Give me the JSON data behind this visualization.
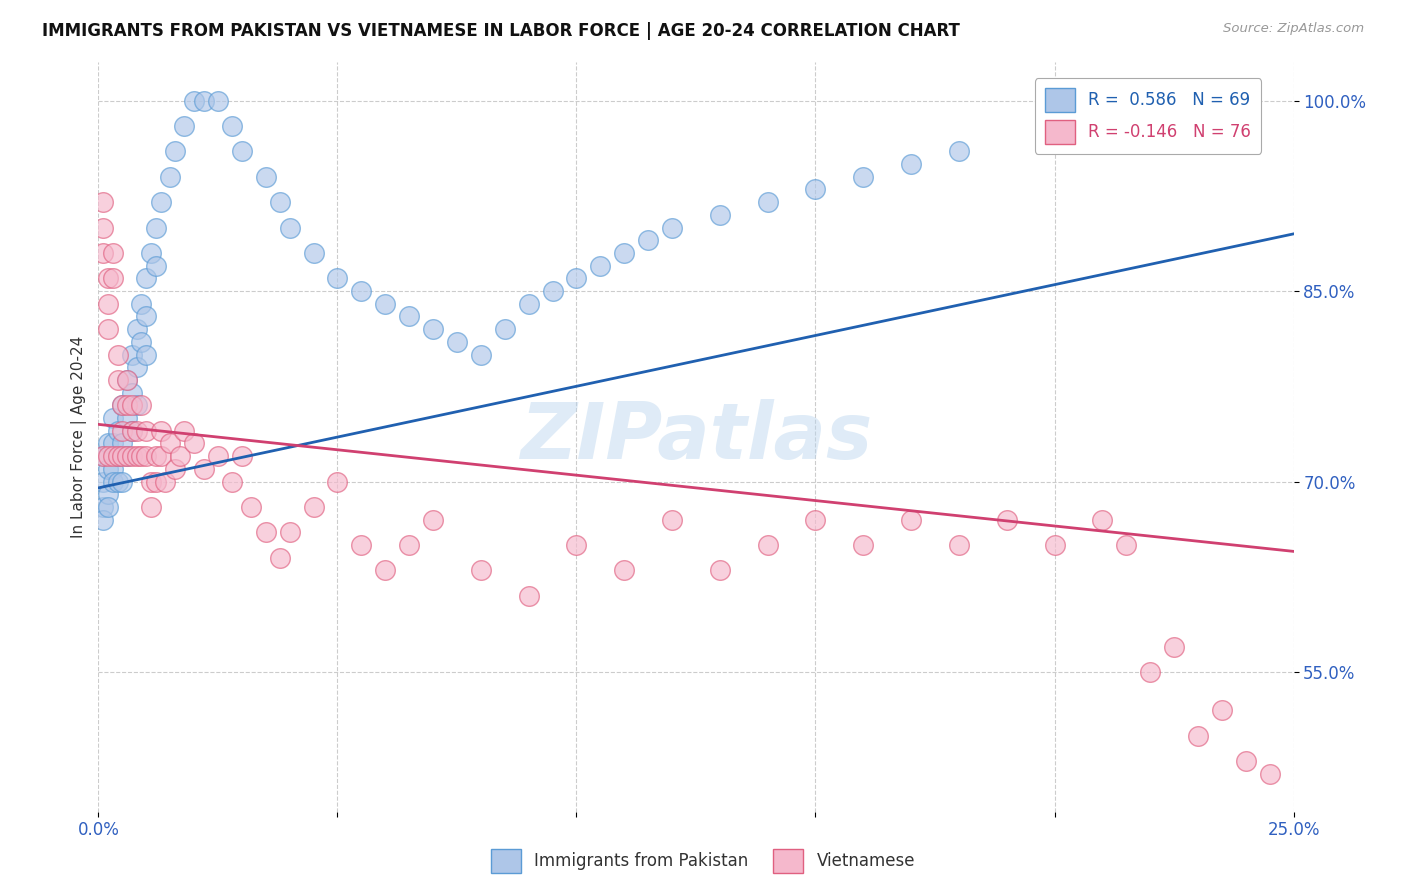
{
  "title": "IMMIGRANTS FROM PAKISTAN VS VIETNAMESE IN LABOR FORCE | AGE 20-24 CORRELATION CHART",
  "source": "Source: ZipAtlas.com",
  "ylabel": "In Labor Force | Age 20-24",
  "xmin": 0.0,
  "xmax": 0.25,
  "ymin": 0.44,
  "ymax": 1.03,
  "yticks": [
    0.55,
    0.7,
    0.85,
    1.0
  ],
  "ytick_labels": [
    "55.0%",
    "70.0%",
    "85.0%",
    "100.0%"
  ],
  "xticks": [
    0.0,
    0.05,
    0.1,
    0.15,
    0.2,
    0.25
  ],
  "xtick_labels": [
    "0.0%",
    "",
    "",
    "",
    "",
    "25.0%"
  ],
  "legend_r_pakistan": "R =  0.586",
  "legend_n_pakistan": "N = 69",
  "legend_r_vietnamese": "R = -0.146",
  "legend_n_vietnamese": "N = 76",
  "pakistan_color": "#aec6e8",
  "vietnamese_color": "#f5b8cc",
  "pakistan_edge_color": "#5b9bd5",
  "vietnamese_edge_color": "#e06080",
  "pakistan_line_color": "#2060b0",
  "vietnamese_line_color": "#d04070",
  "watermark": "ZIPatlas",
  "pak_line_x0": 0.0,
  "pak_line_y0": 0.695,
  "pak_line_x1": 0.25,
  "pak_line_y1": 0.895,
  "vie_line_x0": 0.0,
  "vie_line_y0": 0.745,
  "vie_line_x1": 0.25,
  "vie_line_y1": 0.645,
  "pakistan_x": [
    0.001,
    0.001,
    0.001,
    0.001,
    0.002,
    0.002,
    0.002,
    0.002,
    0.003,
    0.003,
    0.003,
    0.003,
    0.004,
    0.004,
    0.004,
    0.005,
    0.005,
    0.005,
    0.006,
    0.006,
    0.006,
    0.007,
    0.007,
    0.007,
    0.008,
    0.008,
    0.008,
    0.009,
    0.009,
    0.01,
    0.01,
    0.01,
    0.011,
    0.012,
    0.012,
    0.013,
    0.015,
    0.016,
    0.018,
    0.02,
    0.022,
    0.025,
    0.028,
    0.03,
    0.035,
    0.038,
    0.04,
    0.045,
    0.05,
    0.055,
    0.06,
    0.065,
    0.07,
    0.075,
    0.08,
    0.085,
    0.09,
    0.095,
    0.1,
    0.105,
    0.11,
    0.115,
    0.12,
    0.13,
    0.14,
    0.15,
    0.16,
    0.17,
    0.18
  ],
  "pakistan_y": [
    0.72,
    0.7,
    0.68,
    0.67,
    0.73,
    0.71,
    0.69,
    0.68,
    0.75,
    0.73,
    0.71,
    0.7,
    0.74,
    0.72,
    0.7,
    0.76,
    0.73,
    0.7,
    0.78,
    0.75,
    0.72,
    0.8,
    0.77,
    0.74,
    0.82,
    0.79,
    0.76,
    0.84,
    0.81,
    0.86,
    0.83,
    0.8,
    0.88,
    0.9,
    0.87,
    0.92,
    0.94,
    0.96,
    0.98,
    1.0,
    1.0,
    1.0,
    0.98,
    0.96,
    0.94,
    0.92,
    0.9,
    0.88,
    0.86,
    0.85,
    0.84,
    0.83,
    0.82,
    0.81,
    0.8,
    0.82,
    0.84,
    0.85,
    0.86,
    0.87,
    0.88,
    0.89,
    0.9,
    0.91,
    0.92,
    0.93,
    0.94,
    0.95,
    0.96
  ],
  "vietnamese_x": [
    0.001,
    0.001,
    0.001,
    0.001,
    0.002,
    0.002,
    0.002,
    0.002,
    0.003,
    0.003,
    0.003,
    0.004,
    0.004,
    0.004,
    0.005,
    0.005,
    0.005,
    0.006,
    0.006,
    0.006,
    0.007,
    0.007,
    0.007,
    0.008,
    0.008,
    0.009,
    0.009,
    0.01,
    0.01,
    0.011,
    0.011,
    0.012,
    0.012,
    0.013,
    0.013,
    0.014,
    0.015,
    0.016,
    0.017,
    0.018,
    0.02,
    0.022,
    0.025,
    0.028,
    0.03,
    0.032,
    0.035,
    0.038,
    0.04,
    0.045,
    0.05,
    0.055,
    0.06,
    0.065,
    0.07,
    0.08,
    0.09,
    0.1,
    0.11,
    0.12,
    0.13,
    0.14,
    0.15,
    0.16,
    0.17,
    0.18,
    0.19,
    0.2,
    0.21,
    0.215,
    0.22,
    0.225,
    0.23,
    0.235,
    0.24,
    0.245
  ],
  "vietnamese_y": [
    0.92,
    0.9,
    0.88,
    0.72,
    0.86,
    0.84,
    0.82,
    0.72,
    0.88,
    0.86,
    0.72,
    0.8,
    0.78,
    0.72,
    0.76,
    0.74,
    0.72,
    0.78,
    0.76,
    0.72,
    0.76,
    0.74,
    0.72,
    0.74,
    0.72,
    0.76,
    0.72,
    0.74,
    0.72,
    0.7,
    0.68,
    0.72,
    0.7,
    0.74,
    0.72,
    0.7,
    0.73,
    0.71,
    0.72,
    0.74,
    0.73,
    0.71,
    0.72,
    0.7,
    0.72,
    0.68,
    0.66,
    0.64,
    0.66,
    0.68,
    0.7,
    0.65,
    0.63,
    0.65,
    0.67,
    0.63,
    0.61,
    0.65,
    0.63,
    0.67,
    0.63,
    0.65,
    0.67,
    0.65,
    0.67,
    0.65,
    0.67,
    0.65,
    0.67,
    0.65,
    0.55,
    0.57,
    0.5,
    0.52,
    0.48,
    0.47
  ]
}
